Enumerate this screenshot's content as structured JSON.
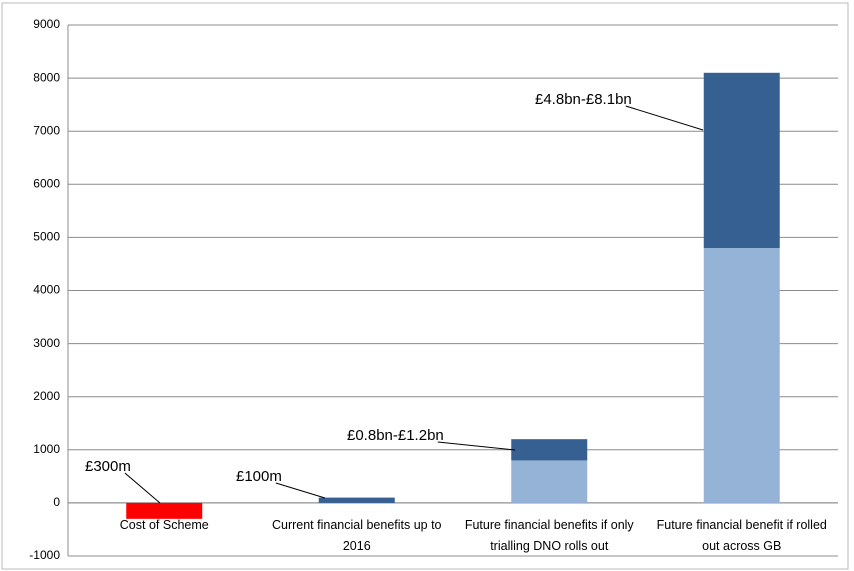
{
  "chart_data": {
    "type": "bar",
    "stacked": true,
    "categories": [
      "Cost of Scheme",
      "Current financial benefits up to 2016",
      "Future financial benefits if only trialling DNO rolls out",
      "Future financial benefit if rolled out across GB"
    ],
    "series": [
      {
        "color": "#ff0000",
        "values": [
          -300,
          null,
          null,
          null
        ]
      },
      {
        "color": "#95b3d7",
        "values": [
          null,
          null,
          800,
          4800
        ]
      },
      {
        "color": "#366092",
        "values": [
          null,
          100,
          400,
          3300
        ]
      }
    ],
    "ylim": [
      -1000,
      9000
    ],
    "yticks": [
      -1000,
      0,
      1000,
      2000,
      3000,
      4000,
      5000,
      6000,
      7000,
      8000,
      9000
    ],
    "grid": true,
    "annotations": [
      "£300m",
      "£100m",
      "£0.8bn-£1.2bn",
      "£4.8bn-£8.1bn"
    ]
  }
}
